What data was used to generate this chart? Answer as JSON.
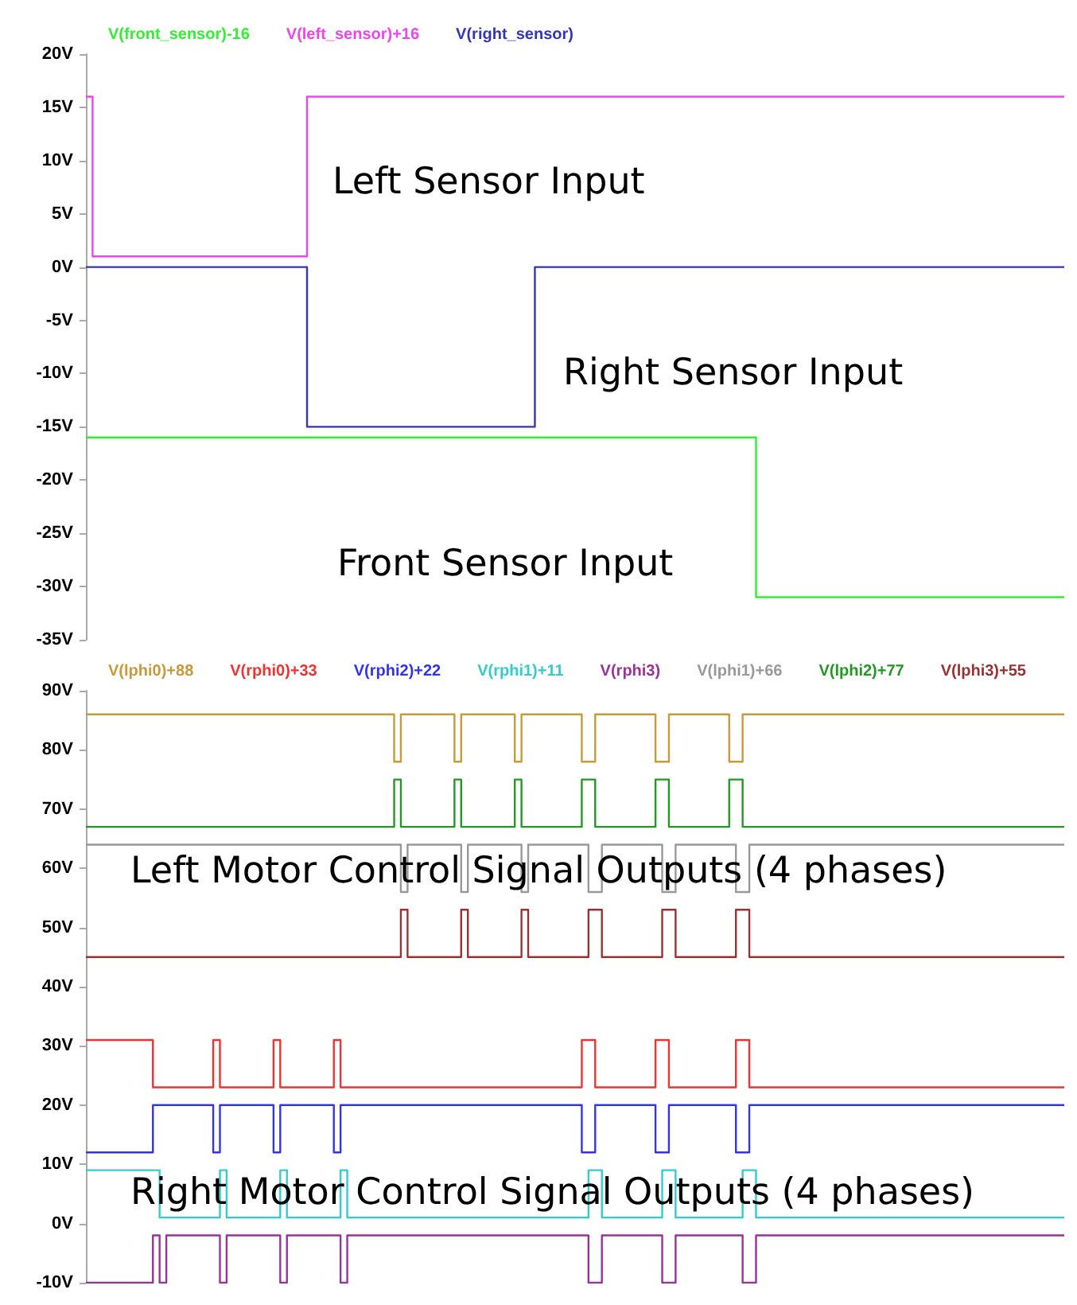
{
  "chart_data": [
    {
      "type": "step",
      "legend": "top",
      "tick_labels": "y",
      "line_style": "solid",
      "annotations": [
        "Left Sensor Input",
        "Right Sensor Input",
        "Front Sensor Input"
      ],
      "ylim": [
        -35,
        20
      ],
      "yticks": [
        {
          "value": 20,
          "label": "20V"
        },
        {
          "value": 15,
          "label": "15V"
        },
        {
          "value": 10,
          "label": "10V"
        },
        {
          "value": 5,
          "label": "5V"
        },
        {
          "value": 0,
          "label": "0V"
        },
        {
          "value": -5,
          "label": "-5V"
        },
        {
          "value": -10,
          "label": "-10V"
        },
        {
          "value": -15,
          "label": "-15V"
        },
        {
          "value": -20,
          "label": "-20V"
        },
        {
          "value": -25,
          "label": "-25V"
        },
        {
          "value": -30,
          "label": "-30V"
        },
        {
          "value": -35,
          "label": "-35V"
        }
      ],
      "categories": [
        null,
        null,
        null,
        null,
        null,
        null,
        null,
        null,
        null,
        null,
        null,
        null,
        null,
        null,
        null,
        null,
        null,
        null,
        null,
        null,
        null,
        null,
        null,
        null,
        null,
        null,
        null,
        null,
        null,
        null,
        null,
        null,
        null,
        null,
        null,
        null,
        null,
        null,
        null,
        null,
        null,
        null,
        null,
        null,
        null,
        null,
        null,
        null,
        null,
        null,
        null,
        null,
        null,
        null,
        null,
        null,
        null,
        null,
        null,
        null,
        null,
        null,
        null,
        null,
        null,
        null,
        null,
        null,
        null,
        null,
        null,
        null,
        null,
        null,
        null,
        null,
        null,
        null,
        null,
        null,
        null,
        null,
        null,
        null,
        null,
        null,
        null,
        null,
        null,
        null,
        null,
        null,
        null,
        null,
        null,
        null,
        null,
        null,
        null,
        null,
        null,
        null,
        null,
        null,
        null,
        null,
        null,
        null,
        null,
        null,
        null,
        null,
        null,
        null,
        null,
        null,
        null,
        null,
        null,
        null,
        null,
        null,
        null,
        null,
        null,
        null,
        null,
        null,
        null,
        null,
        null,
        null,
        null,
        null,
        null,
        null,
        null,
        null,
        null,
        null,
        null,
        null,
        null,
        null,
        null,
        null,
        null
      ],
      "series": [
        {
          "name": "V(front_sensor)-16",
          "color": "#33ee33",
          "values": [
            -16,
            -16,
            -16,
            -16,
            -16,
            -16,
            -16,
            -16,
            -16,
            -16,
            -16,
            -16,
            -16,
            -16,
            -16,
            -16,
            -16,
            -16,
            -16,
            -16,
            -16,
            -16,
            -16,
            -16,
            -16,
            -16,
            -16,
            -16,
            -16,
            -16,
            -16,
            -16,
            -16,
            -16,
            -16,
            -16,
            -16,
            -16,
            -16,
            -16,
            -16,
            -16,
            -16,
            -16,
            -16,
            -16,
            -16,
            -16,
            -16,
            -16,
            -16,
            -16,
            -16,
            -16,
            -16,
            -16,
            -16,
            -16,
            -16,
            -16,
            -16,
            -16,
            -16,
            -16,
            -16,
            -16,
            -16,
            -16,
            -16,
            -16,
            -16,
            -16,
            -16,
            -16,
            -16,
            -16,
            -16,
            -16,
            -16,
            -16,
            -16,
            -16,
            -16,
            -16,
            -16,
            -16,
            -16,
            -16,
            -16,
            -16,
            -16,
            -16,
            -16,
            -16,
            -16,
            -16,
            -16,
            -16,
            -16,
            -16,
            -31,
            -31,
            -31,
            -31,
            -31,
            -31,
            -31,
            -31,
            -31,
            -31,
            -31,
            -31,
            -31,
            -31,
            -31,
            -31,
            -31,
            -31,
            -31,
            -31,
            -31,
            -31,
            -31,
            -31,
            -31,
            -31,
            -31,
            -31,
            -31,
            -31,
            -31,
            -31,
            -31,
            -31,
            -31,
            -31,
            -31,
            -31,
            -31,
            -31,
            -31,
            -31,
            -31,
            -31,
            -31,
            -31,
            -31
          ]
        },
        {
          "name": "V(left_sensor)+16",
          "color": "#ee44ee",
          "values": [
            16,
            1,
            1,
            1,
            1,
            1,
            1,
            1,
            1,
            1,
            1,
            1,
            1,
            1,
            1,
            1,
            1,
            1,
            1,
            1,
            1,
            1,
            1,
            1,
            1,
            1,
            1,
            1,
            1,
            1,
            1,
            1,
            1,
            16,
            16,
            16,
            16,
            16,
            16,
            16,
            16,
            16,
            16,
            16,
            16,
            16,
            16,
            16,
            16,
            16,
            16,
            16,
            16,
            16,
            16,
            16,
            16,
            16,
            16,
            16,
            16,
            16,
            16,
            16,
            16,
            16,
            16,
            16,
            16,
            16,
            16,
            16,
            16,
            16,
            16,
            16,
            16,
            16,
            16,
            16,
            16,
            16,
            16,
            16,
            16,
            16,
            16,
            16,
            16,
            16,
            16,
            16,
            16,
            16,
            16,
            16,
            16,
            16,
            16,
            16,
            16,
            16,
            16,
            16,
            16,
            16,
            16,
            16,
            16,
            16,
            16,
            16,
            16,
            16,
            16,
            16,
            16,
            16,
            16,
            16,
            16,
            16,
            16,
            16,
            16,
            16,
            16,
            16,
            16,
            16,
            16,
            16,
            16,
            16,
            16,
            16,
            16,
            16,
            16,
            16,
            16,
            16,
            16,
            16,
            16,
            16,
            16
          ]
        },
        {
          "name": "V(right_sensor)",
          "color": "#3333bb",
          "values": [
            0,
            0,
            0,
            0,
            0,
            0,
            0,
            0,
            0,
            0,
            0,
            0,
            0,
            0,
            0,
            0,
            0,
            0,
            0,
            0,
            0,
            0,
            0,
            0,
            0,
            0,
            0,
            0,
            0,
            0,
            0,
            0,
            0,
            -15,
            -15,
            -15,
            -15,
            -15,
            -15,
            -15,
            -15,
            -15,
            -15,
            -15,
            -15,
            -15,
            -15,
            -15,
            -15,
            -15,
            -15,
            -15,
            -15,
            -15,
            -15,
            -15,
            -15,
            -15,
            -15,
            -15,
            -15,
            -15,
            -15,
            -15,
            -15,
            -15,
            -15,
            0,
            0,
            0,
            0,
            0,
            0,
            0,
            0,
            0,
            0,
            0,
            0,
            0,
            0,
            0,
            0,
            0,
            0,
            0,
            0,
            0,
            0,
            0,
            0,
            0,
            0,
            0,
            0,
            0,
            0,
            0,
            0,
            0,
            0,
            0,
            0,
            0,
            0,
            0,
            0,
            0,
            0,
            0,
            0,
            0,
            0,
            0,
            0,
            0,
            0,
            0,
            0,
            0,
            0,
            0,
            0,
            0,
            0,
            0,
            0,
            0,
            0,
            0,
            0,
            0,
            0,
            0,
            0,
            0,
            0,
            0,
            0,
            0,
            0,
            0,
            0,
            0,
            0,
            0,
            0
          ]
        }
      ]
    },
    {
      "type": "step",
      "legend": "top",
      "tick_labels": "y",
      "line_style": "solid",
      "annotations": [
        "Left Motor Control Signal Outputs (4 phases)",
        "Right Motor Control Signal Outputs (4 phases)"
      ],
      "ylim": [
        -10,
        90
      ],
      "yticks": [
        {
          "value": 90,
          "label": "90V"
        },
        {
          "value": 80,
          "label": "80V"
        },
        {
          "value": 70,
          "label": "70V"
        },
        {
          "value": 60,
          "label": "60V"
        },
        {
          "value": 50,
          "label": "50V"
        },
        {
          "value": 40,
          "label": "40V"
        },
        {
          "value": 30,
          "label": "30V"
        },
        {
          "value": 20,
          "label": "20V"
        },
        {
          "value": 10,
          "label": "10V"
        },
        {
          "value": 0,
          "label": "0V"
        },
        {
          "value": -10,
          "label": "-10V"
        }
      ],
      "categories": [
        null,
        null,
        null,
        null,
        null,
        null,
        null,
        null,
        null,
        null,
        null,
        null,
        null,
        null,
        null,
        null,
        null,
        null,
        null,
        null,
        null,
        null,
        null,
        null,
        null,
        null,
        null,
        null,
        null,
        null,
        null,
        null,
        null,
        null,
        null,
        null,
        null,
        null,
        null,
        null,
        null,
        null,
        null,
        null,
        null,
        null,
        null,
        null,
        null,
        null,
        null,
        null,
        null,
        null,
        null,
        null,
        null,
        null,
        null,
        null,
        null,
        null,
        null,
        null,
        null,
        null,
        null,
        null,
        null,
        null,
        null,
        null,
        null,
        null,
        null,
        null,
        null,
        null,
        null,
        null,
        null,
        null,
        null,
        null,
        null,
        null,
        null,
        null,
        null,
        null,
        null,
        null,
        null,
        null,
        null,
        null,
        null,
        null,
        null,
        null,
        null,
        null,
        null,
        null,
        null,
        null,
        null,
        null,
        null,
        null,
        null,
        null,
        null,
        null,
        null,
        null,
        null,
        null,
        null,
        null,
        null,
        null,
        null,
        null,
        null,
        null,
        null,
        null,
        null,
        null,
        null,
        null,
        null,
        null,
        null,
        null,
        null,
        null,
        null,
        null,
        null,
        null,
        null,
        null,
        null,
        null,
        null
      ],
      "series": [
        {
          "name": "V(lphi0)+88",
          "color": "#c89a3a",
          "values": [
            86,
            86,
            86,
            86,
            86,
            86,
            86,
            86,
            86,
            86,
            86,
            86,
            86,
            86,
            86,
            86,
            86,
            86,
            86,
            86,
            86,
            86,
            86,
            86,
            86,
            86,
            86,
            86,
            86,
            86,
            86,
            86,
            86,
            86,
            86,
            86,
            86,
            86,
            86,
            86,
            86,
            86,
            86,
            86,
            86,
            86,
            78,
            86,
            86,
            86,
            86,
            86,
            86,
            86,
            86,
            78,
            86,
            86,
            86,
            86,
            86,
            86,
            86,
            86,
            78,
            86,
            86,
            86,
            86,
            86,
            86,
            86,
            86,
            86,
            78,
            78,
            86,
            86,
            86,
            86,
            86,
            86,
            86,
            86,
            86,
            78,
            78,
            86,
            86,
            86,
            86,
            86,
            86,
            86,
            86,
            86,
            78,
            78,
            86,
            86,
            86,
            86,
            86,
            86,
            86,
            86,
            86,
            86,
            86,
            86,
            86,
            86,
            86,
            86,
            86,
            86,
            86,
            86,
            86,
            86,
            86,
            86,
            86,
            86,
            86,
            86,
            86,
            86,
            86,
            86,
            86,
            86,
            86,
            86,
            86,
            86,
            86,
            86,
            86,
            86,
            86,
            86,
            86,
            86,
            86,
            86,
            86
          ]
        },
        {
          "name": "V(rphi0)+33",
          "color": "#ee3333",
          "values": [
            31,
            31,
            31,
            31,
            31,
            31,
            31,
            31,
            31,
            31,
            23,
            23,
            23,
            23,
            23,
            23,
            23,
            23,
            23,
            31,
            23,
            23,
            23,
            23,
            23,
            23,
            23,
            23,
            31,
            23,
            23,
            23,
            23,
            23,
            23,
            23,
            23,
            31,
            23,
            23,
            23,
            23,
            23,
            23,
            23,
            23,
            23,
            23,
            23,
            23,
            23,
            23,
            23,
            23,
            23,
            23,
            23,
            23,
            23,
            23,
            23,
            23,
            23,
            23,
            23,
            23,
            23,
            23,
            23,
            23,
            23,
            23,
            23,
            23,
            31,
            31,
            23,
            23,
            23,
            23,
            23,
            23,
            23,
            23,
            23,
            31,
            31,
            23,
            23,
            23,
            23,
            23,
            23,
            23,
            23,
            23,
            23,
            31,
            31,
            23,
            23,
            23,
            23,
            23,
            23,
            23,
            23,
            23,
            23,
            23,
            23,
            23,
            23,
            23,
            23,
            23,
            23,
            23,
            23,
            23,
            23,
            23,
            23,
            23,
            23,
            23,
            23,
            23,
            23,
            23,
            23,
            23,
            23,
            23,
            23,
            23,
            23,
            23,
            23,
            23,
            23,
            23,
            23,
            23,
            23,
            23,
            23
          ]
        },
        {
          "name": "V(rphi2)+22",
          "color": "#3333ee",
          "values": [
            12,
            12,
            12,
            12,
            12,
            12,
            12,
            12,
            12,
            12,
            20,
            20,
            20,
            20,
            20,
            20,
            20,
            20,
            20,
            12,
            20,
            20,
            20,
            20,
            20,
            20,
            20,
            20,
            12,
            20,
            20,
            20,
            20,
            20,
            20,
            20,
            20,
            12,
            20,
            20,
            20,
            20,
            20,
            20,
            20,
            20,
            20,
            20,
            20,
            20,
            20,
            20,
            20,
            20,
            20,
            20,
            20,
            20,
            20,
            20,
            20,
            20,
            20,
            20,
            20,
            20,
            20,
            20,
            20,
            20,
            20,
            20,
            20,
            20,
            12,
            12,
            20,
            20,
            20,
            20,
            20,
            20,
            20,
            20,
            20,
            12,
            12,
            20,
            20,
            20,
            20,
            20,
            20,
            20,
            20,
            20,
            20,
            12,
            12,
            20,
            20,
            20,
            20,
            20,
            20,
            20,
            20,
            20,
            20,
            20,
            20,
            20,
            20,
            20,
            20,
            20,
            20,
            20,
            20,
            20,
            20,
            20,
            20,
            20,
            20,
            20,
            20,
            20,
            20,
            20,
            20,
            20,
            20,
            20,
            20,
            20,
            20,
            20,
            20,
            20,
            20,
            20,
            20,
            20,
            20,
            20,
            20
          ]
        },
        {
          "name": "V(rphi1)+11",
          "color": "#33cccc",
          "values": [
            9,
            9,
            9,
            9,
            9,
            9,
            9,
            9,
            9,
            9,
            9,
            1,
            1,
            1,
            1,
            1,
            1,
            1,
            1,
            1,
            9,
            1,
            1,
            1,
            1,
            1,
            1,
            1,
            1,
            9,
            1,
            1,
            1,
            1,
            1,
            1,
            1,
            1,
            9,
            1,
            1,
            1,
            1,
            1,
            1,
            1,
            1,
            1,
            1,
            1,
            1,
            1,
            1,
            1,
            1,
            1,
            1,
            1,
            1,
            1,
            1,
            1,
            1,
            1,
            1,
            1,
            1,
            1,
            1,
            1,
            1,
            1,
            1,
            1,
            1,
            9,
            9,
            1,
            1,
            1,
            1,
            1,
            1,
            1,
            1,
            1,
            9,
            9,
            1,
            1,
            1,
            1,
            1,
            1,
            1,
            1,
            1,
            1,
            9,
            9,
            1,
            1,
            1,
            1,
            1,
            1,
            1,
            1,
            1,
            1,
            1,
            1,
            1,
            1,
            1,
            1,
            1,
            1,
            1,
            1,
            1,
            1,
            1,
            1,
            1,
            1,
            1,
            1,
            1,
            1,
            1,
            1,
            1,
            1,
            1,
            1,
            1,
            1,
            1,
            1,
            1,
            1,
            1,
            1,
            1,
            1,
            1
          ]
        },
        {
          "name": "V(rphi3)",
          "color": "#993399",
          "values": [
            -10,
            -10,
            -10,
            -10,
            -10,
            -10,
            -10,
            -10,
            -10,
            -10,
            -2,
            -10,
            -2,
            -2,
            -2,
            -2,
            -2,
            -2,
            -2,
            -2,
            -10,
            -2,
            -2,
            -2,
            -2,
            -2,
            -2,
            -2,
            -2,
            -10,
            -2,
            -2,
            -2,
            -2,
            -2,
            -2,
            -2,
            -2,
            -10,
            -2,
            -2,
            -2,
            -2,
            -2,
            -2,
            -2,
            -2,
            -2,
            -2,
            -2,
            -2,
            -2,
            -2,
            -2,
            -2,
            -2,
            -2,
            -2,
            -2,
            -2,
            -2,
            -2,
            -2,
            -2,
            -2,
            -2,
            -2,
            -2,
            -2,
            -2,
            -2,
            -2,
            -2,
            -2,
            -2,
            -10,
            -10,
            -2,
            -2,
            -2,
            -2,
            -2,
            -2,
            -2,
            -2,
            -2,
            -10,
            -10,
            -2,
            -2,
            -2,
            -2,
            -2,
            -2,
            -2,
            -2,
            -2,
            -2,
            -10,
            -10,
            -2,
            -2,
            -2,
            -2,
            -2,
            -2,
            -2,
            -2,
            -2,
            -2,
            -2,
            -2,
            -2,
            -2,
            -2,
            -2,
            -2,
            -2,
            -2,
            -2,
            -2,
            -2,
            -2,
            -2,
            -2,
            -2,
            -2,
            -2,
            -2,
            -2,
            -2,
            -2,
            -2,
            -2,
            -2,
            -2,
            -2,
            -2,
            -2,
            -2,
            -2,
            -2,
            -2,
            -2,
            -2,
            -2,
            -2
          ]
        },
        {
          "name": "V(lphi1)+66",
          "color": "#999999",
          "values": [
            64,
            64,
            64,
            64,
            64,
            64,
            64,
            64,
            64,
            64,
            64,
            64,
            64,
            64,
            64,
            64,
            64,
            64,
            64,
            64,
            64,
            64,
            64,
            64,
            64,
            64,
            64,
            64,
            64,
            64,
            64,
            64,
            64,
            64,
            64,
            64,
            64,
            64,
            64,
            64,
            64,
            64,
            64,
            64,
            64,
            64,
            64,
            56,
            64,
            64,
            64,
            64,
            64,
            64,
            64,
            64,
            56,
            64,
            64,
            64,
            64,
            64,
            64,
            64,
            64,
            56,
            64,
            64,
            64,
            64,
            64,
            64,
            64,
            64,
            64,
            56,
            56,
            64,
            64,
            64,
            64,
            64,
            64,
            64,
            64,
            64,
            56,
            56,
            64,
            64,
            64,
            64,
            64,
            64,
            64,
            64,
            64,
            56,
            56,
            64,
            64,
            64,
            64,
            64,
            64,
            64,
            64,
            64,
            64,
            64,
            64,
            64,
            64,
            64,
            64,
            64,
            64,
            64,
            64,
            64,
            64,
            64,
            64,
            64,
            64,
            64,
            64,
            64,
            64,
            64,
            64,
            64,
            64,
            64,
            64,
            64,
            64,
            64,
            64,
            64,
            64,
            64,
            64,
            64,
            64,
            64,
            64
          ]
        },
        {
          "name": "V(lphi2)+77",
          "color": "#229922",
          "values": [
            67,
            67,
            67,
            67,
            67,
            67,
            67,
            67,
            67,
            67,
            67,
            67,
            67,
            67,
            67,
            67,
            67,
            67,
            67,
            67,
            67,
            67,
            67,
            67,
            67,
            67,
            67,
            67,
            67,
            67,
            67,
            67,
            67,
            67,
            67,
            67,
            67,
            67,
            67,
            67,
            67,
            67,
            67,
            67,
            67,
            67,
            75,
            67,
            67,
            67,
            67,
            67,
            67,
            67,
            67,
            75,
            67,
            67,
            67,
            67,
            67,
            67,
            67,
            67,
            75,
            67,
            67,
            67,
            67,
            67,
            67,
            67,
            67,
            67,
            75,
            75,
            67,
            67,
            67,
            67,
            67,
            67,
            67,
            67,
            67,
            75,
            75,
            67,
            67,
            67,
            67,
            67,
            67,
            67,
            67,
            67,
            75,
            75,
            67,
            67,
            67,
            67,
            67,
            67,
            67,
            67,
            67,
            67,
            67,
            67,
            67,
            67,
            67,
            67,
            67,
            67,
            67,
            67,
            67,
            67,
            67,
            67,
            67,
            67,
            67,
            67,
            67,
            67,
            67,
            67,
            67,
            67,
            67,
            67,
            67,
            67,
            67,
            67,
            67,
            67,
            67,
            67,
            67,
            67,
            67,
            67,
            67
          ]
        },
        {
          "name": "V(lphi3)+55",
          "color": "#993333",
          "values": [
            45,
            45,
            45,
            45,
            45,
            45,
            45,
            45,
            45,
            45,
            45,
            45,
            45,
            45,
            45,
            45,
            45,
            45,
            45,
            45,
            45,
            45,
            45,
            45,
            45,
            45,
            45,
            45,
            45,
            45,
            45,
            45,
            45,
            45,
            45,
            45,
            45,
            45,
            45,
            45,
            45,
            45,
            45,
            45,
            45,
            45,
            45,
            53,
            45,
            45,
            45,
            45,
            45,
            45,
            45,
            45,
            53,
            45,
            45,
            45,
            45,
            45,
            45,
            45,
            45,
            53,
            45,
            45,
            45,
            45,
            45,
            45,
            45,
            45,
            45,
            53,
            53,
            45,
            45,
            45,
            45,
            45,
            45,
            45,
            45,
            45,
            53,
            53,
            45,
            45,
            45,
            45,
            45,
            45,
            45,
            45,
            45,
            53,
            53,
            45,
            45,
            45,
            45,
            45,
            45,
            45,
            45,
            45,
            45,
            45,
            45,
            45,
            45,
            45,
            45,
            45,
            45,
            45,
            45,
            45,
            45,
            45,
            45,
            45,
            45,
            45,
            45,
            45,
            45,
            45,
            45,
            45,
            45,
            45,
            45,
            45,
            45,
            45,
            45,
            45,
            45,
            45,
            45,
            45,
            45,
            45,
            45
          ]
        }
      ]
    }
  ]
}
